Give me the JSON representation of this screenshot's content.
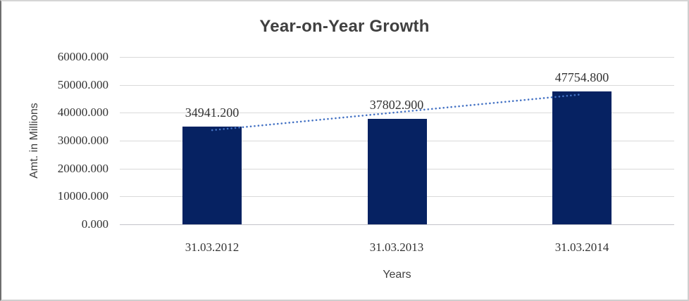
{
  "chart_data": {
    "type": "bar",
    "title": "Year-on-Year Growth",
    "xlabel": "Years",
    "ylabel": "Amt. in Millions",
    "categories": [
      "31.03.2012",
      "31.03.2013",
      "31.03.2014"
    ],
    "values": [
      34941.2,
      37802.9,
      47754.8
    ],
    "data_labels": [
      "34941.200",
      "37802.900",
      "47754.800"
    ],
    "ytick_labels": [
      "0.000",
      "10000.000",
      "20000.000",
      "30000.000",
      "40000.000",
      "50000.000",
      "60000.000"
    ],
    "ylim": [
      0,
      60000
    ],
    "ytick_step": 10000,
    "grid": true,
    "legend": "none",
    "bar_color": "#062262",
    "trendline": {
      "type": "linear",
      "style": "dotted",
      "color": "#4472c4"
    },
    "title_color": "#404040",
    "axis_text_color": "#333333",
    "gridline_color": "#d9d9d9"
  }
}
